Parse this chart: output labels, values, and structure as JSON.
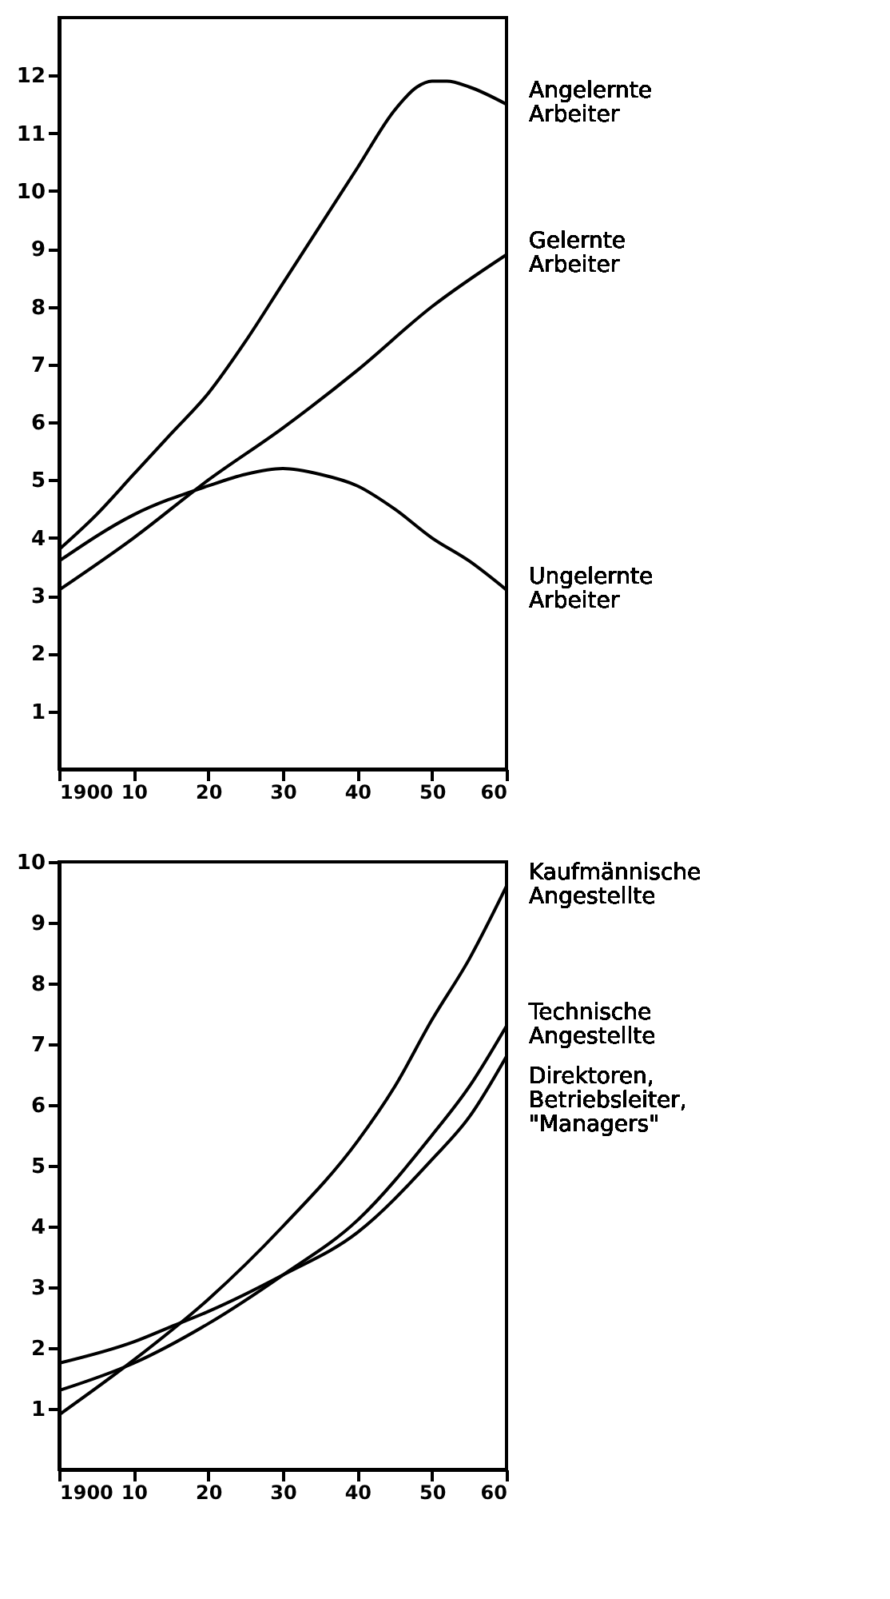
{
  "chart_data": [
    {
      "type": "line",
      "xlim": [
        1900,
        1960
      ],
      "xticks": [
        1900,
        {
          "value": 1910,
          "label": "10"
        },
        {
          "value": 1920,
          "label": "20"
        },
        {
          "value": 1930,
          "label": "30"
        },
        {
          "value": 1940,
          "label": "40"
        },
        {
          "value": 1950,
          "label": "50"
        },
        {
          "value": 1960,
          "label": "60"
        }
      ],
      "ylim": [
        0,
        13
      ],
      "yticks": [
        1,
        2,
        3,
        4,
        5,
        6,
        7,
        8,
        9,
        10,
        11,
        12
      ],
      "grid": false,
      "legend": false,
      "line_style": "solid",
      "marker": "none",
      "series": [
        {
          "name": "Angelernte Arbeiter",
          "color": "#000000",
          "x": [
            1900,
            1905,
            1910,
            1915,
            1920,
            1925,
            1930,
            1935,
            1940,
            1945,
            1948,
            1950,
            1952,
            1955,
            1960
          ],
          "values": [
            3.8,
            4.4,
            5.1,
            5.8,
            6.5,
            7.4,
            8.4,
            9.4,
            10.4,
            11.4,
            11.8,
            11.9,
            11.9,
            11.8,
            11.5
          ]
        },
        {
          "name": "Gelernte Arbeiter",
          "color": "#000000",
          "x": [
            1900,
            1910,
            1920,
            1930,
            1940,
            1950,
            1960
          ],
          "values": [
            3.1,
            4.0,
            5.0,
            5.9,
            6.9,
            8.0,
            8.9
          ]
        },
        {
          "name": "Ungelernte Arbeiter",
          "color": "#000000",
          "x": [
            1900,
            1910,
            1920,
            1925,
            1930,
            1935,
            1940,
            1945,
            1950,
            1955,
            1960
          ],
          "values": [
            3.6,
            4.4,
            4.9,
            5.1,
            5.2,
            5.1,
            4.9,
            4.5,
            4.0,
            3.6,
            3.1
          ]
        }
      ]
    },
    {
      "type": "line",
      "xlim": [
        1900,
        1960
      ],
      "xticks": [
        1900,
        {
          "value": 1910,
          "label": "10"
        },
        {
          "value": 1920,
          "label": "20"
        },
        {
          "value": 1930,
          "label": "30"
        },
        {
          "value": 1940,
          "label": "40"
        },
        {
          "value": 1950,
          "label": "50"
        },
        {
          "value": 1960,
          "label": "60"
        }
      ],
      "ylim": [
        0,
        10
      ],
      "yticks": [
        1,
        2,
        3,
        4,
        5,
        6,
        7,
        8,
        9,
        10
      ],
      "grid": false,
      "legend": false,
      "line_style": "solid",
      "marker": "none",
      "series": [
        {
          "name": "Kaufmännische Angestellte",
          "color": "#000000",
          "x": [
            1900,
            1910,
            1920,
            1930,
            1940,
            1945,
            1950,
            1955,
            1960
          ],
          "values": [
            0.9,
            1.8,
            2.8,
            4.0,
            5.4,
            6.3,
            7.4,
            8.4,
            9.6
          ]
        },
        {
          "name": "Technische Angestellte",
          "color": "#000000",
          "x": [
            1900,
            1910,
            1920,
            1930,
            1940,
            1950,
            1955,
            1960
          ],
          "values": [
            1.3,
            1.75,
            2.4,
            3.2,
            4.1,
            5.5,
            6.3,
            7.3
          ]
        },
        {
          "name": "Direktoren, Betriebsleiter, \"Managers\"",
          "color": "#000000",
          "x": [
            1900,
            1910,
            1915,
            1920,
            1930,
            1940,
            1950,
            1955,
            1960
          ],
          "values": [
            1.75,
            2.1,
            2.35,
            2.6,
            3.2,
            3.9,
            5.1,
            5.8,
            6.8
          ]
        }
      ]
    }
  ]
}
